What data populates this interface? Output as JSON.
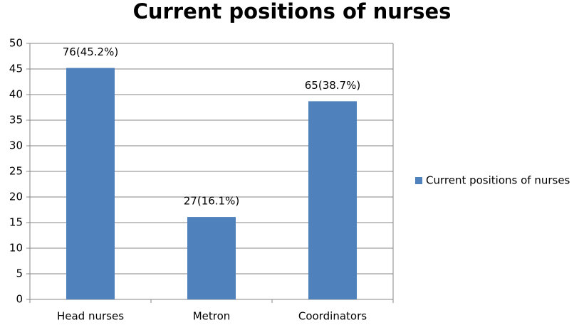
{
  "chart_data": {
    "type": "bar",
    "title": "Current positions of nurses",
    "categories": [
      "Head nurses",
      "Metron",
      "Coordinators"
    ],
    "series": [
      {
        "name": "Current positions of nurses",
        "color": "#4f81bd",
        "values": [
          45.2,
          16.1,
          38.7
        ],
        "value_labels": [
          "76(45.2%)",
          "27(16.1%)",
          "65(38.7%)"
        ]
      }
    ],
    "ylim": [
      0,
      50
    ],
    "yticks": [
      0,
      5,
      10,
      15,
      20,
      25,
      30,
      35,
      40,
      45,
      50
    ],
    "grid": true,
    "legend": "right"
  }
}
